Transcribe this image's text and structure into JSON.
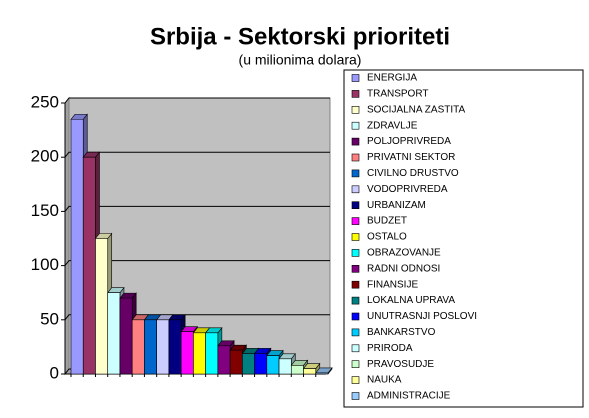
{
  "chart_data": {
    "type": "bar3d",
    "title": "Srbija -  Sektorski prioriteti",
    "subtitle": "(u milionima dolara)",
    "categories": [
      "ENERGIJA",
      "TRANSPORT",
      "SOCIJALNA ZASTITA",
      "ZDRAVLJE",
      "POLJOPRIVREDA",
      "PRIVATNI SEKTOR",
      "CIVILNO DRUSTVO",
      "VODOPRIVREDA",
      "URBANIZAM",
      "BUDZET",
      "OSTALO",
      "OBRAZOVANJE",
      "RADNI ODNOSI",
      "FINANSIJE",
      "LOKALNA UPRAVA",
      "UNUTRASNJI POSLOVI",
      "BANKARSTVO",
      "PRIRODA",
      "PRAVOSUDJE",
      "NAUKA",
      "ADMINISTRACIJE"
    ],
    "values": [
      235,
      200,
      125,
      75,
      70,
      50,
      50,
      50,
      50,
      39,
      38,
      38,
      26,
      22,
      19,
      19,
      17,
      14,
      8,
      5,
      1
    ],
    "colors": [
      "#9999ff",
      "#993366",
      "#ffffcc",
      "#ccffff",
      "#660066",
      "#ff8080",
      "#0066cc",
      "#ccccff",
      "#000080",
      "#ff00ff",
      "#ffff00",
      "#00ffff",
      "#800080",
      "#800000",
      "#008080",
      "#0000ff",
      "#00ccff",
      "#ccffff",
      "#ccffcc",
      "#ffff99",
      "#99ccff"
    ],
    "ylim": [
      0,
      250
    ],
    "yticks": [
      0,
      50,
      100,
      150,
      200,
      250
    ],
    "grid": true,
    "legend": "right"
  }
}
